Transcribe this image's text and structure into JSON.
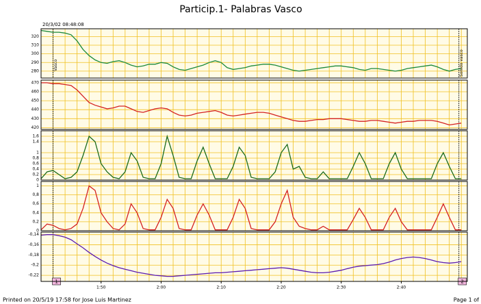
{
  "chart_data": {
    "type": "line",
    "title": "Particip.1- Palabras Vasco",
    "timestamp": "20/3/02 08:48:08",
    "footer_left": "Printed on 20/5/19 17:58 for Jose Luis Martinez",
    "footer_right": "Page 1 of",
    "grid": true,
    "xlim": [
      100,
      171
    ],
    "xticks": [
      {
        "value": 110,
        "label": "1:50"
      },
      {
        "value": 120,
        "label": "2:00"
      },
      {
        "value": 130,
        "label": "2:10"
      },
      {
        "value": 140,
        "label": "2:20"
      },
      {
        "value": 150,
        "label": "2:30"
      },
      {
        "value": 160,
        "label": "2:40"
      }
    ],
    "events": [
      {
        "x": 102,
        "id": "1",
        "label": "Vasco"
      },
      {
        "x": 169.6,
        "id": "2",
        "label": "Sonido vasco"
      }
    ],
    "x": [
      100,
      101,
      102,
      103,
      104,
      105,
      106,
      107,
      108,
      109,
      110,
      111,
      112,
      113,
      114,
      115,
      116,
      117,
      118,
      119,
      120,
      121,
      122,
      123,
      124,
      125,
      126,
      127,
      128,
      129,
      130,
      131,
      132,
      133,
      134,
      135,
      136,
      137,
      138,
      139,
      140,
      141,
      142,
      143,
      144,
      145,
      146,
      147,
      148,
      149,
      150,
      151,
      152,
      153,
      154,
      155,
      156,
      157,
      158,
      159,
      160,
      161,
      162,
      163,
      164,
      165,
      166,
      167,
      168,
      169,
      170
    ],
    "panels": [
      {
        "ylim": [
          272,
          329
        ],
        "yticks": [
          280,
          290,
          300,
          310,
          320
        ],
        "color": "#1a8a3a",
        "values": [
          327,
          326,
          325,
          325,
          324,
          322,
          315,
          305,
          298,
          293,
          290,
          289,
          291,
          292,
          290,
          287,
          285,
          286,
          288,
          288,
          290,
          289,
          285,
          282,
          281,
          283,
          285,
          287,
          290,
          292,
          290,
          284,
          282,
          283,
          284,
          286,
          287,
          288,
          288,
          287,
          285,
          283,
          281,
          280,
          281,
          282,
          283,
          284,
          285,
          286,
          286,
          285,
          284,
          282,
          281,
          283,
          283,
          282,
          281,
          280,
          281,
          283,
          284,
          285,
          286,
          287,
          285,
          282,
          280,
          282,
          283
        ]
      },
      {
        "ylim": [
          418,
          473
        ],
        "yticks": [
          420,
          430,
          440,
          450,
          460,
          470
        ],
        "color": "#d42020",
        "values": [
          470,
          470,
          469,
          469,
          468,
          467,
          462,
          455,
          448,
          445,
          443,
          441,
          442,
          444,
          444,
          441,
          438,
          437,
          439,
          441,
          442,
          441,
          437,
          434,
          433,
          434,
          436,
          437,
          438,
          439,
          437,
          434,
          433,
          434,
          435,
          436,
          437,
          437,
          436,
          434,
          432,
          430,
          428,
          427,
          427,
          428,
          429,
          429,
          430,
          430,
          430,
          429,
          428,
          427,
          427,
          428,
          428,
          427,
          426,
          425,
          426,
          427,
          427,
          428,
          428,
          428,
          427,
          425,
          423,
          424,
          425
        ]
      },
      {
        "ylim": [
          0,
          1.8
        ],
        "yticks": [
          0,
          {
            "value": 0.2,
            "label": "0,2"
          },
          {
            "value": 0.4,
            "label": "0,4"
          },
          {
            "value": 0.6,
            "label": "0,6"
          },
          {
            "value": 0.8,
            "label": "0,8"
          },
          1,
          {
            "value": 1.4,
            "label": "1,4"
          },
          {
            "value": 1.6,
            "label": "1,6"
          }
        ],
        "color": "#1a6a1a",
        "values": [
          0.05,
          0.3,
          0.35,
          0.2,
          0.05,
          0.1,
          0.3,
          0.9,
          1.6,
          1.4,
          0.6,
          0.3,
          0.1,
          0.05,
          0.3,
          1.0,
          0.7,
          0.1,
          0.05,
          0.05,
          0.6,
          1.6,
          0.9,
          0.1,
          0.05,
          0.05,
          0.7,
          1.2,
          0.6,
          0.05,
          0.05,
          0.05,
          0.5,
          1.2,
          0.9,
          0.1,
          0.05,
          0.05,
          0.05,
          0.3,
          1.0,
          1.3,
          0.4,
          0.5,
          0.1,
          0.05,
          0.05,
          0.3,
          0.05,
          0.05,
          0.05,
          0.05,
          0.5,
          1.0,
          0.6,
          0.05,
          0.05,
          0.05,
          0.6,
          1.0,
          0.4,
          0.05,
          0.05,
          0.05,
          0.05,
          0.05,
          0.6,
          1.0,
          0.5,
          0.05,
          0.05
        ]
      },
      {
        "ylim": [
          0,
          1.1
        ],
        "yticks": [
          0,
          {
            "value": 0.2,
            "label": "0,2"
          },
          {
            "value": 0.4,
            "label": "0,4"
          },
          {
            "value": 0.6,
            "label": "0,6"
          },
          {
            "value": 0.8,
            "label": "0,8"
          },
          1
        ],
        "color": "#d42020",
        "values": [
          0.02,
          0.15,
          0.12,
          0.05,
          0.02,
          0.05,
          0.15,
          0.5,
          1.0,
          0.9,
          0.4,
          0.2,
          0.05,
          0.02,
          0.15,
          0.6,
          0.4,
          0.05,
          0.02,
          0.02,
          0.3,
          0.7,
          0.5,
          0.05,
          0.02,
          0.02,
          0.35,
          0.6,
          0.35,
          0.02,
          0.02,
          0.02,
          0.3,
          0.7,
          0.5,
          0.05,
          0.02,
          0.02,
          0.02,
          0.2,
          0.6,
          0.9,
          0.3,
          0.1,
          0.05,
          0.02,
          0.02,
          0.1,
          0.02,
          0.02,
          0.02,
          0.02,
          0.25,
          0.5,
          0.3,
          0.02,
          0.02,
          0.02,
          0.3,
          0.5,
          0.2,
          0.02,
          0.02,
          0.02,
          0.02,
          0.02,
          0.3,
          0.6,
          0.3,
          0.02,
          0.02
        ]
      },
      {
        "ylim": [
          -0.232,
          -0.135
        ],
        "yticks": [
          {
            "value": -0.22,
            "label": "-0,22"
          },
          {
            "value": -0.2,
            "label": "-0,2"
          },
          {
            "value": -0.18,
            "label": "-0,18"
          },
          {
            "value": -0.16,
            "label": "-0,16"
          },
          {
            "value": -0.14,
            "label": "-0,14"
          }
        ],
        "color": "#5a1ab0",
        "values": [
          -0.141,
          -0.14,
          -0.14,
          -0.142,
          -0.145,
          -0.15,
          -0.158,
          -0.166,
          -0.175,
          -0.183,
          -0.19,
          -0.196,
          -0.201,
          -0.205,
          -0.208,
          -0.211,
          -0.214,
          -0.216,
          -0.218,
          -0.22,
          -0.221,
          -0.222,
          -0.222,
          -0.221,
          -0.22,
          -0.219,
          -0.218,
          -0.217,
          -0.216,
          -0.215,
          -0.215,
          -0.214,
          -0.213,
          -0.212,
          -0.211,
          -0.21,
          -0.209,
          -0.208,
          -0.207,
          -0.206,
          -0.205,
          -0.206,
          -0.208,
          -0.21,
          -0.212,
          -0.214,
          -0.215,
          -0.215,
          -0.214,
          -0.212,
          -0.21,
          -0.207,
          -0.204,
          -0.202,
          -0.201,
          -0.2,
          -0.199,
          -0.197,
          -0.194,
          -0.19,
          -0.187,
          -0.185,
          -0.184,
          -0.185,
          -0.187,
          -0.19,
          -0.193,
          -0.195,
          -0.196,
          -0.195,
          -0.193
        ]
      }
    ]
  }
}
